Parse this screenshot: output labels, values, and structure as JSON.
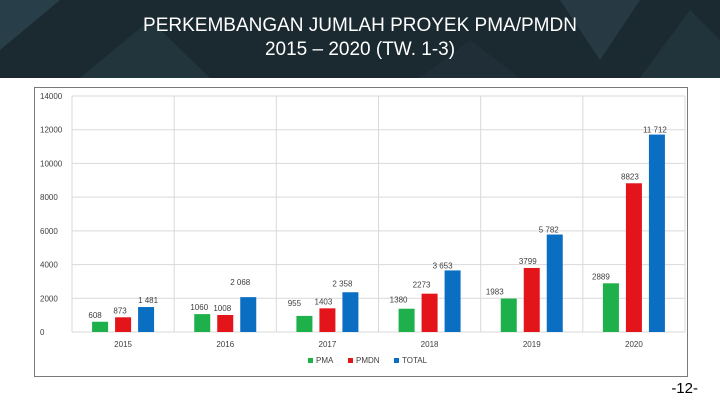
{
  "slide": {
    "title_line1": "PERKEMBANGAN JUMLAH PROYEK PMA/PMDN",
    "title_line2": "2015 – 2020 (TW. 1-3)",
    "page_number": "-12-"
  },
  "colors": {
    "PMA": "#1db04b",
    "PMDN": "#e4151a",
    "TOTAL": "#0a6fc2",
    "header_bg": "#1b2a31"
  },
  "chart_data": {
    "type": "bar",
    "title": "",
    "xlabel": "",
    "ylabel": "",
    "ylim": [
      0,
      14000
    ],
    "yticks": [
      "0",
      "2000",
      "4000",
      "6000",
      "8000",
      "10000",
      "12000",
      "14000"
    ],
    "grid": true,
    "legend_position": "bottom",
    "categories": [
      "2015",
      "2016",
      "2017",
      "2018",
      "2019",
      "2020"
    ],
    "series": [
      {
        "name": "PMA",
        "values": [
          608,
          1060,
          955,
          1380,
          1983,
          2889
        ],
        "labels": [
          "608",
          "1060",
          "955",
          "1380",
          "1983",
          "2889"
        ]
      },
      {
        "name": "PMDN",
        "values": [
          873,
          1008,
          1403,
          2273,
          3799,
          8823
        ],
        "labels": [
          "873",
          "1008",
          "1403",
          "2273",
          "3799",
          "8823"
        ]
      },
      {
        "name": "TOTAL",
        "values": [
          1481,
          2068,
          2358,
          3653,
          5782,
          11712
        ],
        "labels": [
          "1 481",
          "2 068",
          "2 358",
          "3 653",
          "5 782",
          "11 712"
        ]
      }
    ]
  }
}
